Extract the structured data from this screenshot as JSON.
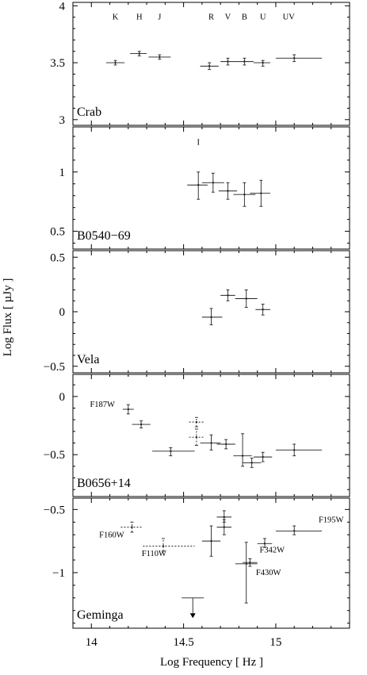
{
  "figure": {
    "ylabel": "Log Flux  [ µJy ]",
    "xlabel": "Log Frequency  [ Hz ]"
  },
  "chart_data": [
    {
      "type": "scatter",
      "panel_label": "Crab",
      "xlim": [
        13.9,
        15.4
      ],
      "ylim": [
        2.95,
        4.03
      ],
      "yticks": [
        3,
        3.5,
        4
      ],
      "yticklabels": [
        "3",
        "3.5",
        "4"
      ],
      "xticks": [
        14,
        14.5,
        15
      ],
      "xticklabels": [],
      "band_labels": [
        {
          "text": "K",
          "x": 14.13,
          "y": 3.88
        },
        {
          "text": "H",
          "x": 14.26,
          "y": 3.88
        },
        {
          "text": "J",
          "x": 14.37,
          "y": 3.88
        },
        {
          "text": "R",
          "x": 14.65,
          "y": 3.88
        },
        {
          "text": "V",
          "x": 14.74,
          "y": 3.88
        },
        {
          "text": "B",
          "x": 14.83,
          "y": 3.88
        },
        {
          "text": "U",
          "x": 14.93,
          "y": 3.88
        },
        {
          "text": "UV",
          "x": 15.07,
          "y": 3.88
        }
      ],
      "points": [
        {
          "x": 14.13,
          "xlo": 14.08,
          "xhi": 14.18,
          "y": 3.5,
          "ylo": 3.48,
          "yhi": 3.52
        },
        {
          "x": 14.26,
          "xlo": 14.21,
          "xhi": 14.3,
          "y": 3.58,
          "ylo": 3.56,
          "yhi": 3.6
        },
        {
          "x": 14.37,
          "xlo": 14.31,
          "xhi": 14.43,
          "y": 3.55,
          "ylo": 3.53,
          "yhi": 3.57
        },
        {
          "x": 14.64,
          "xlo": 14.59,
          "xhi": 14.69,
          "y": 3.47,
          "ylo": 3.44,
          "yhi": 3.5
        },
        {
          "x": 14.74,
          "xlo": 14.7,
          "xhi": 14.78,
          "y": 3.51,
          "ylo": 3.48,
          "yhi": 3.54
        },
        {
          "x": 14.83,
          "xlo": 14.78,
          "xhi": 14.88,
          "y": 3.51,
          "ylo": 3.48,
          "yhi": 3.54
        },
        {
          "x": 14.93,
          "xlo": 14.88,
          "xhi": 14.97,
          "y": 3.5,
          "ylo": 3.47,
          "yhi": 3.52
        },
        {
          "x": 15.1,
          "xlo": 15.0,
          "xhi": 15.25,
          "y": 3.54,
          "ylo": 3.51,
          "yhi": 3.57
        }
      ]
    },
    {
      "type": "scatter",
      "panel_label": "B0540−69",
      "xlim": [
        13.9,
        15.4
      ],
      "ylim": [
        0.35,
        1.38
      ],
      "yticks": [
        0.5,
        1
      ],
      "yticklabels": [
        "0.5",
        "1"
      ],
      "xticks": [
        14,
        14.5,
        15
      ],
      "xticklabels": [],
      "band_labels": [
        {
          "text": "I",
          "x": 14.58,
          "y": 1.23
        }
      ],
      "points": [
        {
          "x": 14.58,
          "xlo": 14.52,
          "xhi": 14.63,
          "y": 0.89,
          "ylo": 0.77,
          "yhi": 1.0
        },
        {
          "x": 14.66,
          "xlo": 14.6,
          "xhi": 14.72,
          "y": 0.91,
          "ylo": 0.83,
          "yhi": 0.99
        },
        {
          "x": 14.74,
          "xlo": 14.69,
          "xhi": 14.79,
          "y": 0.84,
          "ylo": 0.77,
          "yhi": 0.91
        },
        {
          "x": 14.83,
          "xlo": 14.77,
          "xhi": 14.89,
          "y": 0.81,
          "ylo": 0.71,
          "yhi": 0.91
        },
        {
          "x": 14.92,
          "xlo": 14.86,
          "xhi": 14.97,
          "y": 0.82,
          "ylo": 0.71,
          "yhi": 0.93
        }
      ]
    },
    {
      "type": "scatter",
      "panel_label": "Vela",
      "xlim": [
        13.9,
        15.4
      ],
      "ylim": [
        -0.56,
        0.56
      ],
      "yticks": [
        -0.5,
        0,
        0.5
      ],
      "yticklabels": [
        "−0.5",
        "0",
        "0.5"
      ],
      "xticks": [
        14,
        14.5,
        15
      ],
      "xticklabels": [],
      "band_labels": [],
      "points": [
        {
          "x": 14.65,
          "xlo": 14.6,
          "xhi": 14.71,
          "y": -0.05,
          "ylo": -0.12,
          "yhi": 0.03
        },
        {
          "x": 14.74,
          "xlo": 14.7,
          "xhi": 14.78,
          "y": 0.15,
          "ylo": 0.1,
          "yhi": 0.2
        },
        {
          "x": 14.84,
          "xlo": 14.78,
          "xhi": 14.9,
          "y": 0.12,
          "ylo": 0.04,
          "yhi": 0.2
        },
        {
          "x": 14.93,
          "xlo": 14.89,
          "xhi": 14.97,
          "y": 0.02,
          "ylo": -0.03,
          "yhi": 0.07
        }
      ]
    },
    {
      "type": "scatter",
      "panel_label": "B0656+14",
      "xlim": [
        13.9,
        15.4
      ],
      "ylim": [
        -0.86,
        0.19
      ],
      "yticks": [
        -0.5,
        0
      ],
      "yticklabels": [
        "−0.5",
        "0"
      ],
      "xticks": [
        14,
        14.5,
        15
      ],
      "xticklabels": [],
      "band_labels": [
        {
          "text": "F187W",
          "x": 14.06,
          "y": -0.09
        }
      ],
      "points": [
        {
          "x": 14.2,
          "xlo": 14.17,
          "xhi": 14.23,
          "y": -0.11,
          "ylo": -0.15,
          "yhi": -0.07,
          "dashed": false
        },
        {
          "x": 14.27,
          "xlo": 14.22,
          "xhi": 14.32,
          "y": -0.24,
          "ylo": -0.27,
          "yhi": -0.21,
          "dashed": false
        },
        {
          "x": 14.43,
          "xlo": 14.33,
          "xhi": 14.56,
          "y": -0.47,
          "ylo": -0.51,
          "yhi": -0.44,
          "dashed": false
        },
        {
          "x": 14.57,
          "xlo": 14.53,
          "xhi": 14.61,
          "y": -0.22,
          "ylo": -0.26,
          "yhi": -0.18,
          "dashed": true
        },
        {
          "x": 14.57,
          "xlo": 14.53,
          "xhi": 14.61,
          "y": -0.35,
          "ylo": -0.42,
          "yhi": -0.28,
          "dashed": true
        },
        {
          "x": 14.65,
          "xlo": 14.59,
          "xhi": 14.7,
          "y": -0.4,
          "ylo": -0.46,
          "yhi": -0.33,
          "dashed": false
        },
        {
          "x": 14.73,
          "xlo": 14.68,
          "xhi": 14.78,
          "y": -0.41,
          "ylo": -0.45,
          "yhi": -0.37,
          "dashed": false
        },
        {
          "x": 14.82,
          "xlo": 14.77,
          "xhi": 14.87,
          "y": -0.51,
          "ylo": -0.6,
          "yhi": -0.32,
          "dashed": false
        },
        {
          "x": 14.87,
          "xlo": 14.82,
          "xhi": 14.92,
          "y": -0.57,
          "ylo": -0.61,
          "yhi": -0.53,
          "dashed": false
        },
        {
          "x": 14.93,
          "xlo": 14.88,
          "xhi": 14.98,
          "y": -0.52,
          "ylo": -0.56,
          "yhi": -0.48,
          "dashed": false
        },
        {
          "x": 15.1,
          "xlo": 15.0,
          "xhi": 15.25,
          "y": -0.46,
          "ylo": -0.51,
          "yhi": -0.41,
          "dashed": false
        }
      ]
    },
    {
      "type": "scatter",
      "panel_label": "Geminga",
      "xlim": [
        13.9,
        15.4
      ],
      "ylim": [
        -1.44,
        -0.41
      ],
      "yticks": [
        -1,
        -0.5
      ],
      "yticklabels": [
        "−1",
        "−0.5"
      ],
      "xticks": [
        14,
        14.5,
        15
      ],
      "xticklabels": [
        "14",
        "14.5",
        "15"
      ],
      "band_labels": [
        {
          "text": "F160W",
          "x": 14.11,
          "y": -0.72
        },
        {
          "text": "F110W",
          "x": 14.34,
          "y": -0.87
        },
        {
          "text": "F342W",
          "x": 14.98,
          "y": -0.84
        },
        {
          "text": "F195W",
          "x": 15.3,
          "y": -0.6
        },
        {
          "text": "F430W",
          "x": 14.96,
          "y": -1.02
        }
      ],
      "points": [
        {
          "x": 14.22,
          "xlo": 14.16,
          "xhi": 14.28,
          "y": -0.64,
          "ylo": -0.68,
          "yhi": -0.6,
          "dashed": true
        },
        {
          "x": 14.39,
          "xlo": 14.28,
          "xhi": 14.56,
          "y": -0.79,
          "ylo": -0.83,
          "yhi": -0.73,
          "dashed": true
        },
        {
          "x": 14.65,
          "xlo": 14.6,
          "xhi": 14.7,
          "y": -0.75,
          "ylo": -0.87,
          "yhi": -0.63,
          "dashed": false
        },
        {
          "x": 14.72,
          "xlo": 14.68,
          "xhi": 14.76,
          "y": -0.56,
          "ylo": -0.6,
          "yhi": -0.51,
          "dashed": false
        },
        {
          "x": 14.72,
          "xlo": 14.68,
          "xhi": 14.76,
          "y": -0.64,
          "ylo": -0.7,
          "yhi": -0.58,
          "dashed": false
        },
        {
          "x": 14.84,
          "xlo": 14.78,
          "xhi": 14.9,
          "y": -0.93,
          "ylo": -1.24,
          "yhi": -0.76,
          "dashed": false
        },
        {
          "x": 14.86,
          "xlo": 14.82,
          "xhi": 14.9,
          "y": -0.92,
          "ylo": -0.95,
          "yhi": -0.89,
          "dashed": false
        },
        {
          "x": 14.94,
          "xlo": 14.9,
          "xhi": 14.98,
          "y": -0.77,
          "ylo": -0.8,
          "yhi": -0.73,
          "dashed": false
        },
        {
          "x": 15.1,
          "xlo": 15.0,
          "xhi": 15.25,
          "y": -0.67,
          "ylo": -0.7,
          "yhi": -0.63,
          "dashed": false
        }
      ],
      "upper_limits": [
        {
          "x": 14.55,
          "xlo": 14.49,
          "xhi": 14.61,
          "y": -1.2,
          "ytip": -1.36
        }
      ]
    }
  ]
}
